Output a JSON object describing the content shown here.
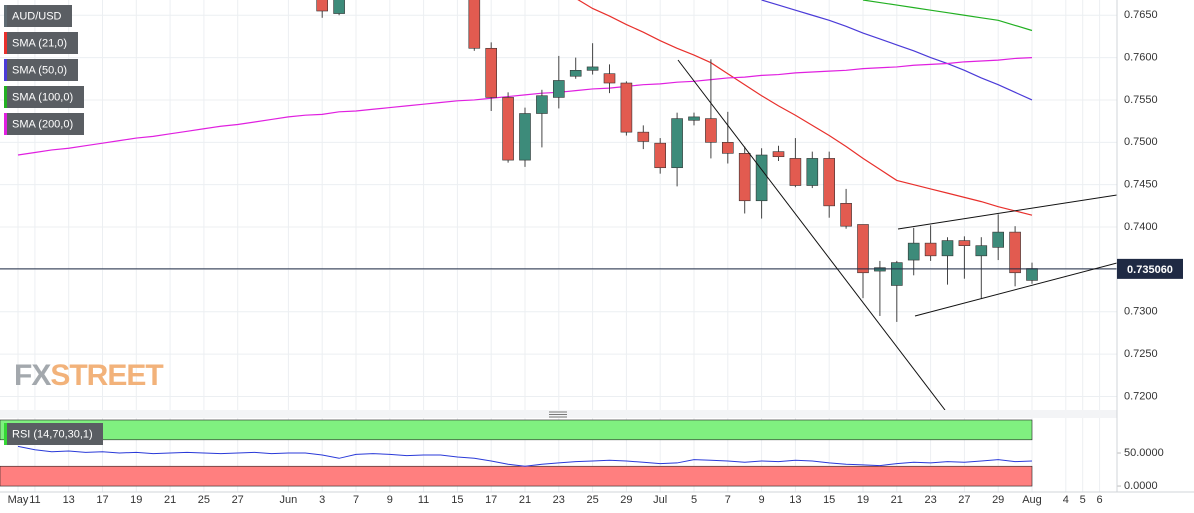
{
  "chart_data": [
    {
      "type": "candlestick",
      "categories": [
        "May",
        "11",
        null,
        "13",
        null,
        "17",
        null,
        "19",
        null,
        "21",
        null,
        "25",
        null,
        "27",
        null,
        null,
        "Jun",
        null,
        "3",
        null,
        "7",
        null,
        "9",
        null,
        "11",
        null,
        "15",
        null,
        "17",
        null,
        "21",
        null,
        "23",
        null,
        "25",
        null,
        "29",
        null,
        "Jul",
        null,
        "5",
        null,
        "7",
        null,
        "9",
        null,
        "13",
        null,
        "15",
        null,
        "19",
        null,
        "21",
        null,
        "23",
        null,
        "27",
        null,
        "29",
        null,
        "Aug",
        null,
        "4",
        "5",
        "6"
      ],
      "ylim": [
        0.7184,
        0.7668
      ],
      "yticks": [
        {
          "value": 0.72,
          "label": "0.7200"
        },
        {
          "value": 0.725,
          "label": "0.7250"
        },
        {
          "value": 0.73,
          "label": "0.7300"
        },
        {
          "value": 0.735,
          "label": "0.7350"
        },
        {
          "value": 0.74,
          "label": "0.7400"
        },
        {
          "value": 0.745,
          "label": "0.7450"
        },
        {
          "value": 0.75,
          "label": "0.7500"
        },
        {
          "value": 0.755,
          "label": "0.7550"
        },
        {
          "value": 0.76,
          "label": "0.7600"
        },
        {
          "value": 0.765,
          "label": "0.7650"
        }
      ],
      "grid": true,
      "last_price": {
        "value": 0.73506,
        "label": "0.735060"
      },
      "watermark": {
        "left": "FX",
        "right": "STREET"
      },
      "series": [
        {
          "name": "AUD/USD",
          "type": "candlestick",
          "color": "#5f6b73",
          "up_color": "#3d8b7a",
          "down_color": "#e25b50",
          "open": [
            null,
            null,
            null,
            null,
            null,
            null,
            null,
            null,
            null,
            null,
            null,
            null,
            null,
            null,
            null,
            null,
            null,
            null,
            0.7672,
            0.7652,
            null,
            null,
            null,
            null,
            null,
            null,
            null,
            0.7672,
            0.7611,
            0.7553,
            0.7479,
            0.7534,
            0.7553,
            0.7578,
            0.7585,
            0.7581,
            0.757,
            0.7512,
            0.7499,
            0.747,
            0.7526,
            0.7528,
            0.75,
            0.7487,
            0.7431,
            0.7489,
            0.7481,
            0.7449,
            0.7481,
            0.7428,
            0.7403,
            0.7348,
            0.7331,
            0.7361,
            0.7381,
            0.7366,
            0.7384,
            0.7366,
            0.7376,
            0.7394,
            0.7337,
            null,
            null,
            null,
            null
          ],
          "high": [
            null,
            null,
            null,
            null,
            null,
            null,
            null,
            null,
            null,
            null,
            null,
            null,
            null,
            null,
            null,
            null,
            null,
            null,
            0.7675,
            0.768,
            null,
            null,
            null,
            null,
            null,
            null,
            null,
            0.768,
            0.7618,
            0.7559,
            0.7541,
            0.7562,
            0.7602,
            0.76,
            0.7617,
            0.7592,
            0.7572,
            0.752,
            0.7505,
            0.7535,
            0.7535,
            0.7598,
            0.7536,
            0.7495,
            0.7493,
            0.7496,
            0.7505,
            0.7489,
            0.7489,
            0.7445,
            0.7403,
            0.736,
            0.736,
            0.7399,
            0.7402,
            0.7388,
            0.7389,
            0.7388,
            0.7415,
            0.7401,
            0.7358,
            null,
            null,
            null,
            null
          ],
          "low": [
            null,
            null,
            null,
            null,
            null,
            null,
            null,
            null,
            null,
            null,
            null,
            null,
            null,
            null,
            null,
            null,
            null,
            null,
            0.7647,
            0.765,
            null,
            null,
            null,
            null,
            null,
            null,
            null,
            0.7608,
            0.7537,
            0.7476,
            0.7471,
            0.7494,
            0.754,
            0.7575,
            0.758,
            0.7558,
            0.7508,
            0.7492,
            0.7463,
            0.7448,
            0.752,
            0.7481,
            0.7475,
            0.7416,
            0.741,
            0.7478,
            0.7447,
            0.7446,
            0.7411,
            0.7398,
            0.7316,
            0.7295,
            0.7288,
            0.7343,
            0.736,
            0.7332,
            0.7339,
            0.7315,
            0.7361,
            0.733,
            0.7333,
            null,
            null,
            null,
            null
          ],
          "close": [
            null,
            null,
            null,
            null,
            null,
            null,
            null,
            null,
            null,
            null,
            null,
            null,
            null,
            null,
            null,
            null,
            null,
            null,
            0.7655,
            0.767,
            null,
            null,
            null,
            null,
            null,
            null,
            null,
            0.7611,
            0.7553,
            0.7479,
            0.7534,
            0.7555,
            0.7573,
            0.7585,
            0.7589,
            0.757,
            0.7512,
            0.7501,
            0.747,
            0.7528,
            0.753,
            0.75,
            0.7487,
            0.7431,
            0.7485,
            0.7483,
            0.7449,
            0.7481,
            0.7425,
            0.7401,
            0.7346,
            0.7352,
            0.7358,
            0.7381,
            0.7366,
            0.7384,
            0.7378,
            0.7378,
            0.7394,
            0.7346,
            0.7351,
            null,
            null,
            null,
            null
          ]
        },
        {
          "name": "SMA (21,0)",
          "type": "line",
          "color": "#e8302c",
          "values": [
            null,
            null,
            null,
            null,
            null,
            null,
            null,
            null,
            null,
            null,
            null,
            null,
            null,
            null,
            null,
            null,
            null,
            null,
            null,
            null,
            null,
            null,
            null,
            null,
            null,
            null,
            null,
            null,
            null,
            null,
            null,
            null,
            null,
            0.767,
            0.7658,
            0.7649,
            0.7639,
            0.763,
            0.762,
            0.7611,
            0.7603,
            0.7594,
            0.7581,
            0.7568,
            0.7555,
            0.7543,
            0.7532,
            0.752,
            0.7508,
            0.7495,
            0.7481,
            0.7468,
            0.7455,
            0.745,
            0.7445,
            0.744,
            0.7435,
            0.743,
            0.7424,
            0.7419,
            0.7414,
            null,
            null,
            null,
            null
          ]
        },
        {
          "name": "SMA (50,0)",
          "type": "line",
          "color": "#4b3bd8",
          "values": [
            null,
            null,
            null,
            null,
            null,
            null,
            null,
            null,
            null,
            null,
            null,
            null,
            null,
            null,
            null,
            null,
            null,
            null,
            null,
            null,
            null,
            null,
            null,
            null,
            null,
            null,
            null,
            null,
            null,
            null,
            null,
            null,
            null,
            null,
            null,
            null,
            null,
            null,
            null,
            null,
            null,
            null,
            null,
            null,
            0.7668,
            0.7662,
            0.7656,
            0.765,
            0.7644,
            0.7637,
            0.7629,
            0.7622,
            0.7615,
            0.7608,
            0.76,
            0.7593,
            0.7585,
            0.7576,
            0.7568,
            0.7559,
            0.755,
            null,
            null,
            null,
            null
          ]
        },
        {
          "name": "SMA (100,0)",
          "type": "line",
          "color": "#22b022",
          "values": [
            null,
            null,
            null,
            null,
            null,
            null,
            null,
            null,
            null,
            null,
            null,
            null,
            null,
            null,
            null,
            null,
            null,
            null,
            null,
            null,
            null,
            null,
            null,
            null,
            null,
            null,
            null,
            null,
            null,
            null,
            null,
            null,
            null,
            null,
            null,
            null,
            null,
            null,
            null,
            null,
            null,
            null,
            null,
            null,
            null,
            null,
            null,
            null,
            null,
            null,
            0.7668,
            0.7665,
            0.7662,
            0.7659,
            0.7656,
            0.7653,
            0.765,
            0.7647,
            0.7644,
            0.7638,
            0.7632,
            null,
            null,
            null,
            null
          ]
        },
        {
          "name": "SMA (200,0)",
          "type": "line",
          "color": "#e020e0",
          "values": [
            0.7485,
            0.7488,
            0.7491,
            0.7493,
            0.7496,
            0.7499,
            0.7502,
            0.7505,
            0.7507,
            0.751,
            0.7513,
            0.7516,
            0.7519,
            0.7521,
            0.7524,
            0.7527,
            0.753,
            0.7532,
            0.7533,
            0.7536,
            0.7537,
            0.7539,
            0.7541,
            0.7543,
            0.7545,
            0.7547,
            0.7549,
            0.755,
            0.7552,
            0.7554,
            0.7556,
            0.7558,
            0.7559,
            0.7561,
            0.7563,
            0.7564,
            0.7566,
            0.7568,
            0.7569,
            0.7571,
            0.7572,
            0.7574,
            0.7576,
            0.7577,
            0.7579,
            0.758,
            0.7582,
            0.7583,
            0.7584,
            0.7585,
            0.7587,
            0.7588,
            0.7589,
            0.7591,
            0.7592,
            0.7593,
            0.7595,
            0.7596,
            0.7597,
            0.7599,
            0.76,
            null,
            null,
            null,
            null
          ]
        }
      ]
    },
    {
      "type": "line",
      "ylim": [
        -9,
        103
      ],
      "yticks": [
        {
          "value": 0,
          "label": "0.0000"
        },
        {
          "value": 50,
          "label": "50.0000"
        }
      ],
      "bands": [
        {
          "from": 70,
          "to": 100,
          "color": "#80f080"
        },
        {
          "from": 0,
          "to": 30,
          "color": "#ff7f7f"
        }
      ],
      "series": [
        {
          "name": "RSI (14,70,30,1)",
          "color": "#2a3ad8",
          "label_color": "#35d835",
          "values": [
            60,
            55,
            52,
            53,
            51,
            52,
            50,
            51,
            49,
            50,
            51,
            50,
            49,
            50,
            51,
            49,
            50,
            50,
            47,
            42,
            48,
            49,
            48,
            46,
            47,
            47,
            44,
            42,
            38,
            33,
            30,
            33,
            35,
            37,
            38,
            39,
            38,
            36,
            34,
            35,
            40,
            39,
            38,
            36,
            38,
            37,
            39,
            38,
            35,
            33,
            32,
            31,
            34,
            36,
            35,
            37,
            36,
            38,
            40,
            37,
            38,
            null,
            null,
            null,
            null
          ]
        }
      ]
    }
  ]
}
